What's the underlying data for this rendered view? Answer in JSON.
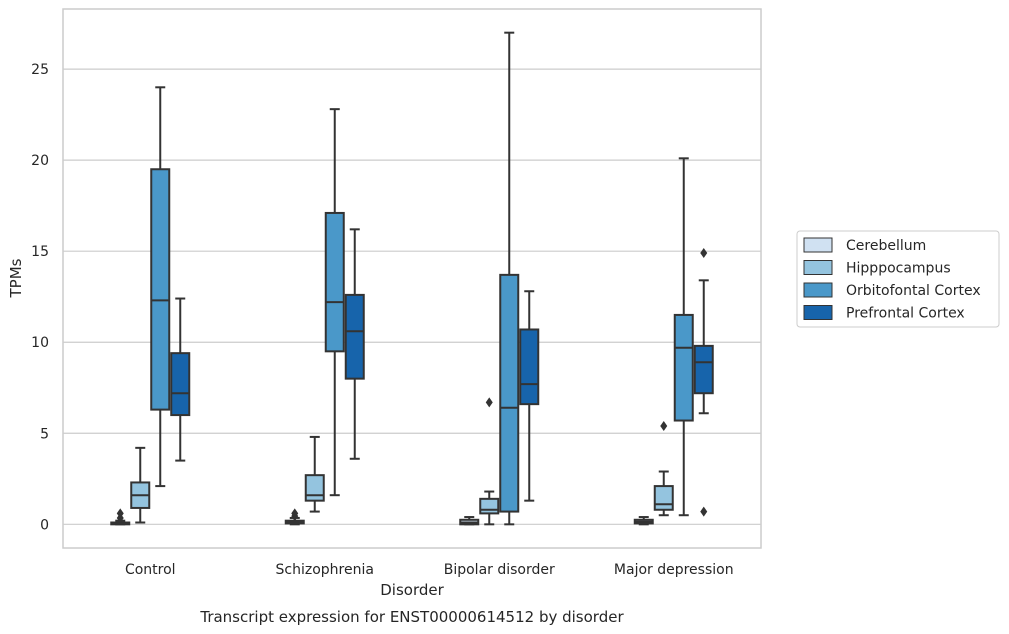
{
  "chart_data": {
    "type": "box",
    "title": "",
    "caption": "Transcript expression for ENST00000614512 by disorder",
    "xlabel": "Disorder",
    "ylabel": "TPMs",
    "ylim": [
      -1.3,
      28.3
    ],
    "yticks": [
      0,
      5,
      10,
      15,
      20,
      25
    ],
    "grid": "horizontal",
    "legend_position": "right",
    "categories": [
      "Control",
      "Schizophrenia",
      "Bipolar disorder",
      "Major depression"
    ],
    "series": [
      {
        "name": "Cerebellum",
        "color": "#d0e1f2",
        "boxes": [
          {
            "whisker_low": 0.0,
            "q1": 0.0,
            "median": 0.05,
            "q3": 0.1,
            "whisker_high": 0.2,
            "outliers": [
              0.35,
              0.6
            ]
          },
          {
            "whisker_low": 0.0,
            "q1": 0.05,
            "median": 0.1,
            "q3": 0.2,
            "whisker_high": 0.35,
            "outliers": [
              0.45,
              0.6
            ]
          },
          {
            "whisker_low": 0.0,
            "q1": 0.0,
            "median": 0.1,
            "q3": 0.25,
            "whisker_high": 0.4,
            "outliers": []
          },
          {
            "whisker_low": 0.0,
            "q1": 0.05,
            "median": 0.15,
            "q3": 0.25,
            "whisker_high": 0.4,
            "outliers": []
          }
        ]
      },
      {
        "name": "Hipppocampus",
        "color": "#94c4df",
        "boxes": [
          {
            "whisker_low": 0.1,
            "q1": 0.9,
            "median": 1.6,
            "q3": 2.3,
            "whisker_high": 4.2,
            "outliers": []
          },
          {
            "whisker_low": 0.7,
            "q1": 1.3,
            "median": 1.6,
            "q3": 2.7,
            "whisker_high": 4.8,
            "outliers": []
          },
          {
            "whisker_low": 0.0,
            "q1": 0.6,
            "median": 0.8,
            "q3": 1.4,
            "whisker_high": 1.8,
            "outliers": [
              6.7
            ]
          },
          {
            "whisker_low": 0.5,
            "q1": 0.8,
            "median": 1.1,
            "q3": 2.1,
            "whisker_high": 2.9,
            "outliers": [
              5.4
            ]
          }
        ]
      },
      {
        "name": "Orbitofontal Cortex",
        "color": "#4a98c9",
        "boxes": [
          {
            "whisker_low": 2.1,
            "q1": 6.3,
            "median": 12.3,
            "q3": 19.5,
            "whisker_high": 24.0,
            "outliers": []
          },
          {
            "whisker_low": 1.6,
            "q1": 9.5,
            "median": 12.2,
            "q3": 17.1,
            "whisker_high": 22.8,
            "outliers": []
          },
          {
            "whisker_low": 0.0,
            "q1": 0.7,
            "median": 6.4,
            "q3": 13.7,
            "whisker_high": 27.0,
            "outliers": []
          },
          {
            "whisker_low": 0.5,
            "q1": 5.7,
            "median": 9.7,
            "q3": 11.5,
            "whisker_high": 20.1,
            "outliers": []
          }
        ]
      },
      {
        "name": "Prefrontal Cortex",
        "color": "#1764ab",
        "boxes": [
          {
            "whisker_low": 3.5,
            "q1": 6.0,
            "median": 7.2,
            "q3": 9.4,
            "whisker_high": 12.4,
            "outliers": []
          },
          {
            "whisker_low": 3.6,
            "q1": 8.0,
            "median": 10.6,
            "q3": 12.6,
            "whisker_high": 16.2,
            "outliers": []
          },
          {
            "whisker_low": 1.3,
            "q1": 6.6,
            "median": 7.7,
            "q3": 10.7,
            "whisker_high": 12.8,
            "outliers": []
          },
          {
            "whisker_low": 6.1,
            "q1": 7.2,
            "median": 8.9,
            "q3": 9.8,
            "whisker_high": 13.4,
            "outliers": [
              14.9,
              0.7
            ]
          }
        ]
      }
    ]
  }
}
